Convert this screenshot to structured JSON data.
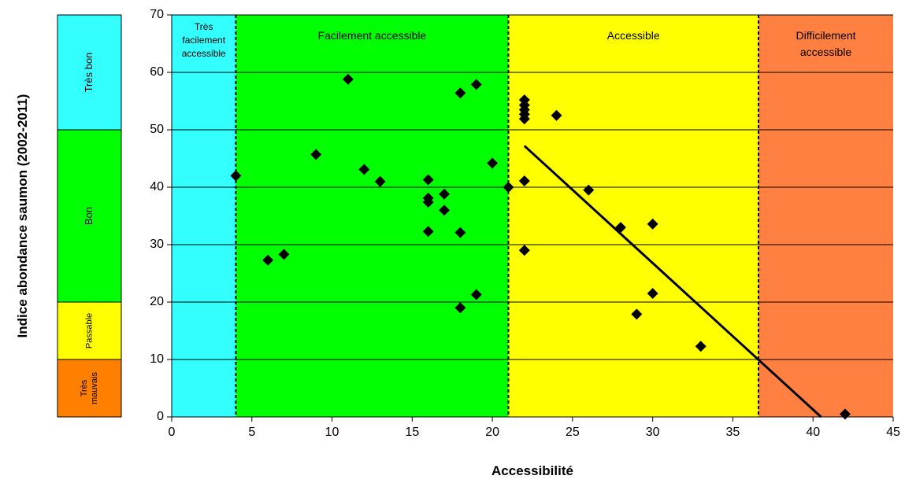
{
  "chart_data": {
    "type": "scatter",
    "title": "",
    "xlabel": "Accessibilité",
    "ylabel": "Indice abondance saumon (2002-2011)",
    "xlim": [
      0,
      45
    ],
    "ylim": [
      0,
      70
    ],
    "x_ticks": [
      0,
      5,
      10,
      15,
      20,
      25,
      30,
      35,
      40,
      45
    ],
    "y_ticks": [
      0,
      10,
      20,
      30,
      40,
      50,
      60,
      70
    ],
    "grid": "horizontal",
    "legend": "none",
    "zones": [
      {
        "label": [
          "Très",
          "facilement",
          "accessible"
        ],
        "x_from": 0,
        "x_to": 4,
        "color": "#33ffff"
      },
      {
        "label": [
          "Facilement accessible"
        ],
        "x_from": 4,
        "x_to": 21,
        "color": "#00ff00"
      },
      {
        "label": [
          "Accessible"
        ],
        "x_from": 21,
        "x_to": 36.6,
        "color": "#ffff00"
      },
      {
        "label": [
          "Difficilement",
          "accessible"
        ],
        "x_from": 36.6,
        "x_to": 45,
        "color": "#ff8040"
      }
    ],
    "quality_bands": [
      {
        "label": [
          "Très bon"
        ],
        "y_from": 50,
        "y_to": 70,
        "color": "#33ffff"
      },
      {
        "label": [
          "Bon"
        ],
        "y_from": 20,
        "y_to": 50,
        "color": "#00ff00"
      },
      {
        "label": [
          "Passable"
        ],
        "y_from": 10,
        "y_to": 20,
        "color": "#ffff00"
      },
      {
        "label": [
          "Très",
          "mauvais"
        ],
        "y_from": 0,
        "y_to": 10,
        "color": "#ff8000"
      }
    ],
    "points": [
      {
        "x": 4,
        "y": 42
      },
      {
        "x": 6,
        "y": 27.3
      },
      {
        "x": 7,
        "y": 28.3
      },
      {
        "x": 9,
        "y": 45.7
      },
      {
        "x": 11,
        "y": 58.8
      },
      {
        "x": 12,
        "y": 43.1
      },
      {
        "x": 13,
        "y": 41
      },
      {
        "x": 16,
        "y": 41.3
      },
      {
        "x": 16,
        "y": 38.1
      },
      {
        "x": 16,
        "y": 37.4
      },
      {
        "x": 16,
        "y": 32.3
      },
      {
        "x": 17,
        "y": 38.8
      },
      {
        "x": 17,
        "y": 36
      },
      {
        "x": 18,
        "y": 56.4
      },
      {
        "x": 18,
        "y": 32.1
      },
      {
        "x": 18,
        "y": 19
      },
      {
        "x": 19,
        "y": 57.9
      },
      {
        "x": 19,
        "y": 21.3
      },
      {
        "x": 20,
        "y": 44.2
      },
      {
        "x": 21,
        "y": 40
      },
      {
        "x": 22,
        "y": 55.2
      },
      {
        "x": 22,
        "y": 54.3
      },
      {
        "x": 22,
        "y": 53.5
      },
      {
        "x": 22,
        "y": 52.7
      },
      {
        "x": 22,
        "y": 51.9
      },
      {
        "x": 22,
        "y": 41.1
      },
      {
        "x": 22,
        "y": 29
      },
      {
        "x": 24,
        "y": 52.5
      },
      {
        "x": 26,
        "y": 39.5
      },
      {
        "x": 28,
        "y": 33
      },
      {
        "x": 29,
        "y": 17.9
      },
      {
        "x": 30,
        "y": 33.6
      },
      {
        "x": 30,
        "y": 21.5
      },
      {
        "x": 33,
        "y": 12.3
      },
      {
        "x": 42,
        "y": 0.5
      }
    ],
    "trendline": {
      "x": [
        22,
        40.5
      ],
      "y": [
        47.2,
        0
      ]
    },
    "marker_color": "#000000"
  }
}
